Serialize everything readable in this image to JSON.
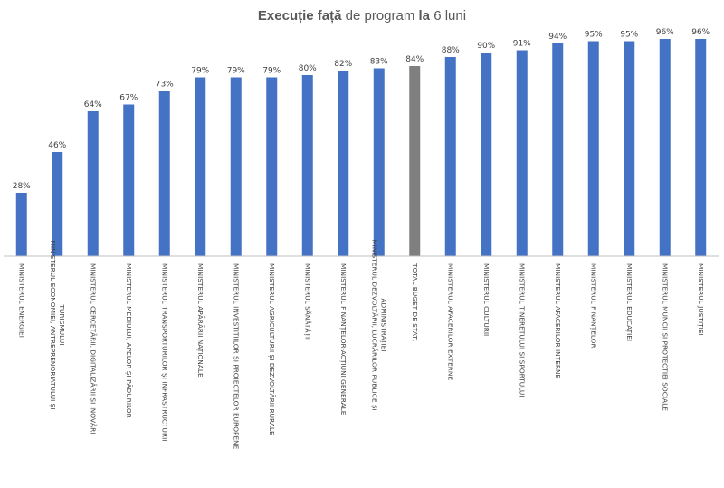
{
  "chart_data": {
    "type": "bar",
    "title_parts": [
      {
        "text": "Execuție față",
        "bold": true
      },
      {
        "text": " de program ",
        "bold": false
      },
      {
        "text": "la",
        "bold": true
      },
      {
        "text": " 6 luni",
        "bold": false
      }
    ],
    "categories": [
      [
        "MINISTERUL ENERGIEI"
      ],
      [
        "MINISTERUL ECONOMIEI, ANTREPRENORIATULUI ȘI",
        "TURISMULUI"
      ],
      [
        "MINISTERUL CERCETĂRII, DIGITALIZĂRII ȘI INOVĂRII"
      ],
      [
        "MINISTERUL MEDIULUI, APELOR ȘI PĂDURILOR"
      ],
      [
        "MINISTERUL TRANSPORTURILOR ȘI INFRASTRUCTURII"
      ],
      [
        "MINISTERUL APĂRĂRII NAȚIONALE"
      ],
      [
        "MINISTERUL INVESTIȚIILOR ȘI PROIECTELOR EUROPENE"
      ],
      [
        "MINISTERUL AGRICULTURII ȘI DEZVOLTĂRII RURALE"
      ],
      [
        "MINISTERUL SĂNĂTĂȚII"
      ],
      [
        "MINISTERUL FINANȚELOR-ACȚIUNI GENERALE"
      ],
      [
        "MINISTERUL DEZVOLTĂRII, LUCRĂRILOR PUBLICE ȘI",
        "ADMINISTRAȚIEI"
      ],
      [
        "TOTAL BUGET DE STAT,"
      ],
      [
        "MINISTERUL AFACERILOR EXTERNE"
      ],
      [
        "MINISTERUL CULTURII"
      ],
      [
        "MINISTERUL TINERETULUI ȘI SPORTULUI"
      ],
      [
        "MINISTERUL AFACERILOR INTERNE"
      ],
      [
        "MINISTERUL FINANȚELOR"
      ],
      [
        "MINISTERUL EDUCAȚIEI"
      ],
      [
        "MINISTERUL MUNCII ȘI PROTECȚIEI SOCIALE"
      ],
      [
        "MINISTERUL JUSTIȚIEI"
      ]
    ],
    "values": [
      28,
      46,
      64,
      67,
      73,
      79,
      79,
      79,
      80,
      82,
      83,
      84,
      88,
      90,
      91,
      94,
      95,
      95,
      96,
      96
    ],
    "value_suffix": "%",
    "highlight_index": 11,
    "colors": {
      "bar": "#4472C4",
      "highlight": "#7F7F7F",
      "axis": "#BFBFBF"
    },
    "ylim": [
      0,
      100
    ],
    "grid": false,
    "legend": "none"
  }
}
